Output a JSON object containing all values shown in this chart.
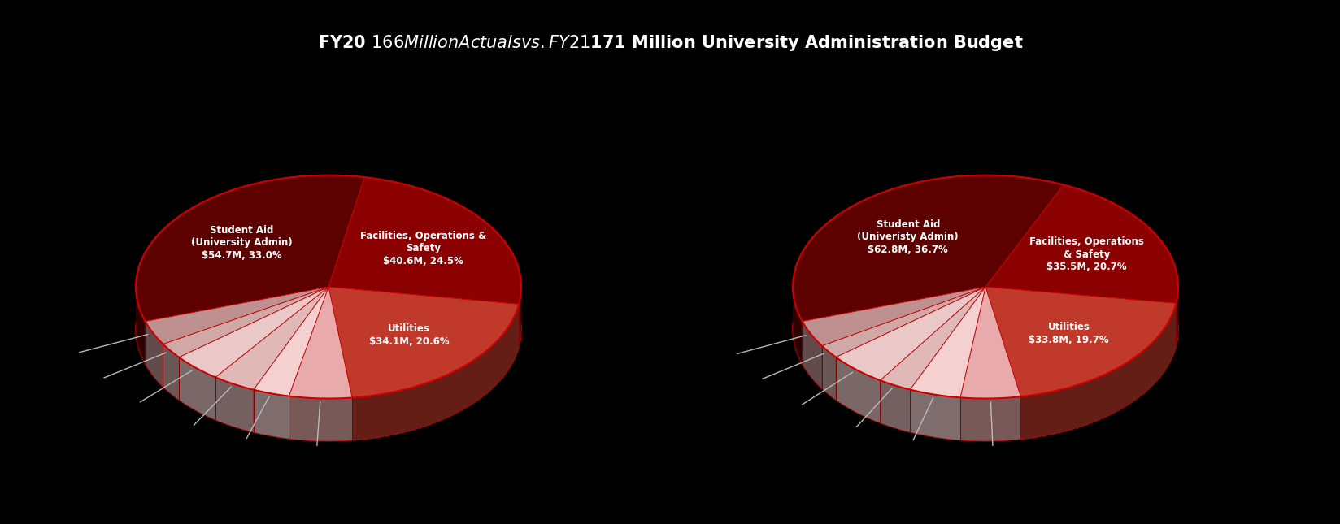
{
  "title": "FY20 $166 Million Actuals vs. FY21 $171 Million University Administration Budget",
  "title_bg_color": "#8B0000",
  "title_text_color": "#FFFFFF",
  "background_color": "#000000",
  "fig_width": 16.49,
  "fig_height": 6.45,
  "chart1": {
    "values": [
      54.7,
      40.6,
      34.1,
      8.7,
      5.1,
      6.0,
      6.9,
      3.8,
      5.9
    ],
    "labels_inside": [
      "Student Aid\n(University Admin)\n$54.7M, 33.0%",
      "Facilities, Operations &\nSafety\n$40.6M, 24.5%",
      "Utilities\n$34.1M, 20.6%"
    ],
    "startangle": 198
  },
  "chart2": {
    "values": [
      62.8,
      35.5,
      33.8,
      8.6,
      7.4,
      4.8,
      8.5,
      3.4,
      6.6
    ],
    "labels_inside": [
      "Student Aid\n(Univeristy Admin)\n$62.8M, 36.7%",
      "Facilities, Operations\n& Safety\n$35.5M, 20.7%",
      "Utilities\n$33.8M, 19.7%"
    ],
    "startangle": 198
  },
  "pie_colors": [
    "#5C0000",
    "#8B0000",
    "#C0392B",
    "#E8AAAA",
    "#F5D0D0",
    "#E0B8B8",
    "#EAC8C8",
    "#D0A8A8",
    "#BE9090"
  ],
  "title_fontsize": 15,
  "label_fontsize": 8.5
}
